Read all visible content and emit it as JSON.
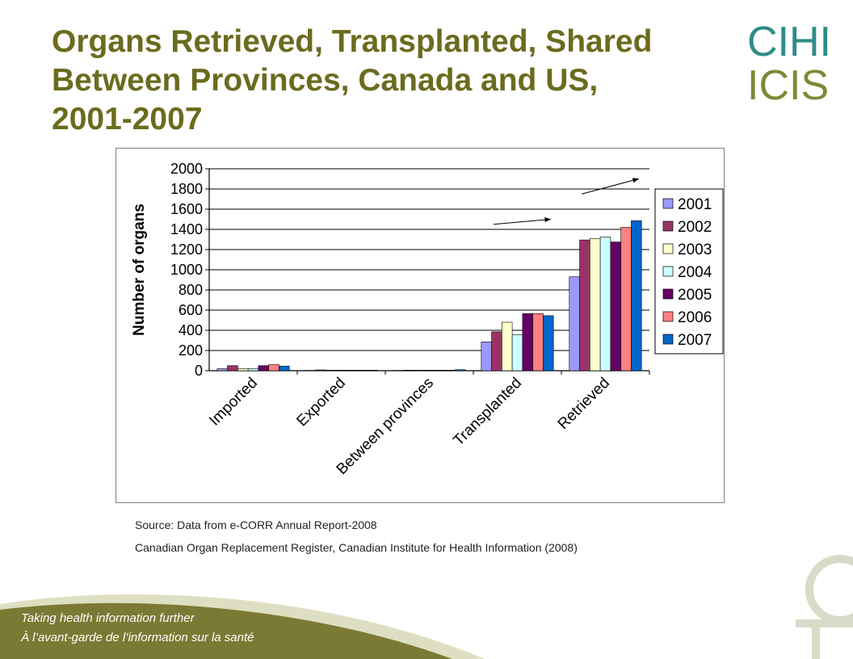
{
  "slide": {
    "title": "Organs Retrieved, Transplanted, Shared\nBetween Provinces, Canada and  US,\n 2001-2007",
    "logo_top": "CIHI",
    "logo_bottom": "ICIS",
    "source_line_1": "Source: Data from e-CORR Annual Report-2008",
    "source_line_2": "Canadian Organ Replacement Register, Canadian Institute for Health Information (2008)",
    "tagline_en": "Taking health information further",
    "tagline_fr": "À l’avant-garde de l’information sur la santé"
  },
  "colors": {
    "title": "#6b6b1e",
    "footer_olive": "#7a7a34",
    "logo_teal": "#2f8c86",
    "logo_olive": "#7c8a36"
  },
  "chart_data": {
    "type": "bar",
    "title": "",
    "xlabel": "",
    "ylabel": "Number of organs",
    "ylim": [
      0,
      2000
    ],
    "yticks": [
      0,
      200,
      400,
      600,
      800,
      1000,
      1200,
      1400,
      1600,
      1800,
      2000
    ],
    "grid": true,
    "legend_position": "right",
    "categories": [
      "Imported",
      "Exported",
      "Between provinces",
      "Transplanted",
      "Retrieved"
    ],
    "series": [
      {
        "name": "2001",
        "color": "#9999ff",
        "values": [
          20,
          3,
          3,
          285,
          930
        ]
      },
      {
        "name": "2002",
        "color": "#993366",
        "values": [
          50,
          8,
          5,
          385,
          1295
        ]
      },
      {
        "name": "2003",
        "color": "#ffffcc",
        "values": [
          20,
          5,
          5,
          480,
          1310
        ]
      },
      {
        "name": "2004",
        "color": "#ccffff",
        "values": [
          20,
          5,
          5,
          355,
          1325
        ]
      },
      {
        "name": "2005",
        "color": "#660066",
        "values": [
          50,
          5,
          5,
          565,
          1275
        ]
      },
      {
        "name": "2006",
        "color": "#ff8080",
        "values": [
          60,
          5,
          5,
          565,
          1420
        ]
      },
      {
        "name": "2007",
        "color": "#0066cc",
        "values": [
          45,
          5,
          10,
          545,
          1485
        ]
      }
    ],
    "annotations": [
      {
        "type": "arrow",
        "category": "Transplanted",
        "from_value": 1450,
        "to_value": 1500
      },
      {
        "type": "arrow",
        "category": "Retrieved",
        "from_value": 1750,
        "to_value": 1900
      }
    ]
  }
}
